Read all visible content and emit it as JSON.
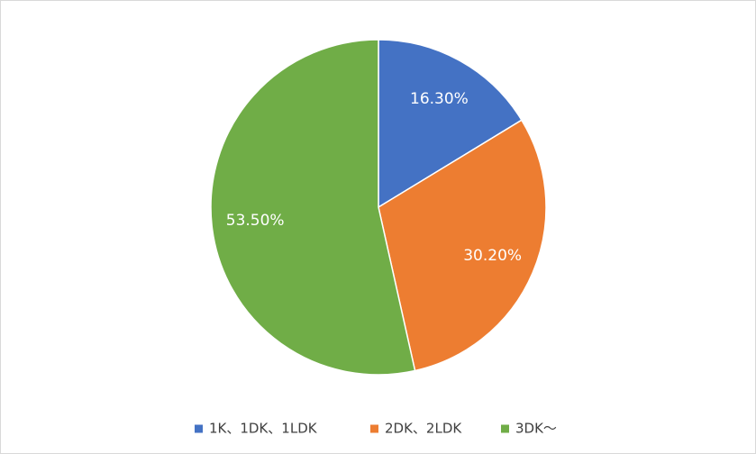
{
  "chart_data": {
    "type": "pie",
    "categories": [
      "1K、1DK、1LDK",
      "2DK、2LDK",
      "3DK～"
    ],
    "values": [
      16.3,
      30.2,
      53.5
    ],
    "value_labels": [
      "16.30%",
      "30.20%",
      "53.50%"
    ],
    "colors": [
      "#4472c4",
      "#ed7d31",
      "#70ad47"
    ],
    "legend": "bottom"
  }
}
